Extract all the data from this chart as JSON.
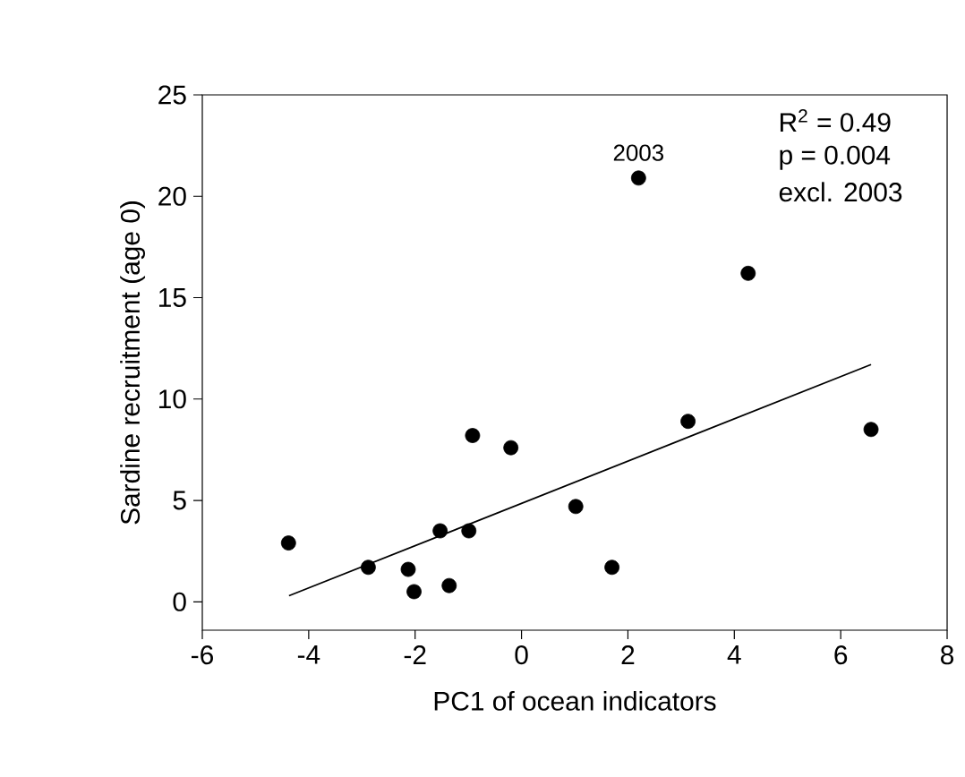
{
  "chart_data": {
    "type": "scatter",
    "xlabel": "PC1 of ocean indicators",
    "ylabel": "Sardine recruitment (age 0)",
    "xlim": [
      -6,
      8
    ],
    "xticks": [
      -6,
      -4,
      -2,
      0,
      2,
      4,
      6,
      8
    ],
    "ylim": [
      -1.4,
      25
    ],
    "yticks": [
      0,
      5,
      10,
      15,
      20,
      25
    ],
    "grid": false,
    "series": [
      {
        "color": "#000000",
        "marker": "circle",
        "x": [
          -4.38,
          -2.88,
          -2.13,
          -2.02,
          -1.53,
          -1.36,
          -0.99,
          -0.92,
          -0.2,
          1.02,
          1.7,
          3.13,
          6.57,
          2.2,
          4.26
        ],
        "values": [
          2.9,
          1.7,
          1.6,
          0.5,
          3.5,
          0.8,
          3.5,
          8.2,
          7.6,
          4.7,
          1.7,
          8.9,
          8.5,
          20.9,
          16.2
        ]
      },
      {
        "type": "line",
        "color": "#000000",
        "marker": "none",
        "line_style": "solid",
        "x": [
          -4.37,
          6.57
        ],
        "values": [
          0.3,
          11.7
        ]
      }
    ],
    "annotations": [
      {
        "text": "2003",
        "x": 2.2,
        "y": 20.9
      },
      "R$^{2}$  = 0.49",
      "p = 0.004",
      "excl. 2003"
    ]
  }
}
